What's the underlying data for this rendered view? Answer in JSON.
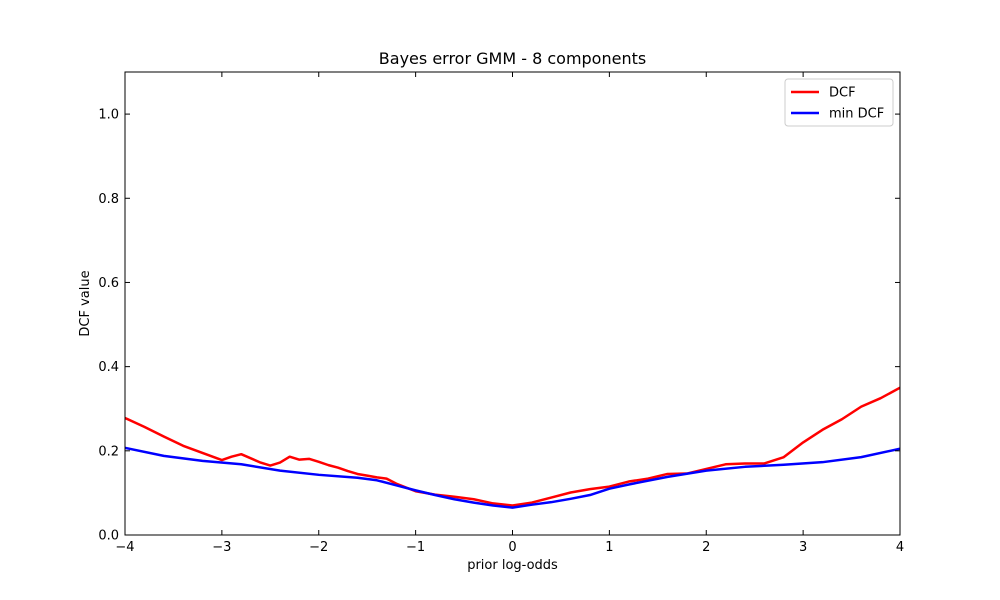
{
  "chart_data": {
    "type": "line",
    "title": "Bayes error GMM - 8 components",
    "xlabel": "prior log-odds",
    "ylabel": "DCF value",
    "xlim": [
      -4,
      4
    ],
    "ylim": [
      0,
      1.1
    ],
    "xticks": [
      -4,
      -3,
      -2,
      -1,
      0,
      1,
      2,
      3,
      4
    ],
    "yticks": [
      0.0,
      0.2,
      0.4,
      0.6,
      0.8,
      1.0
    ],
    "xtick_labels": [
      "−4",
      "−3",
      "−2",
      "−1",
      "0",
      "1",
      "2",
      "3",
      "4"
    ],
    "ytick_labels": [
      "0.0",
      "0.2",
      "0.4",
      "0.6",
      "0.8",
      "1.0"
    ],
    "grid": false,
    "legend_position": "top-right",
    "series": [
      {
        "name": "DCF",
        "color": "#ff0000",
        "x": [
          -4.0,
          -3.8,
          -3.6,
          -3.4,
          -3.2,
          -3.0,
          -2.9,
          -2.8,
          -2.6,
          -2.5,
          -2.4,
          -2.3,
          -2.2,
          -2.1,
          -2.0,
          -1.9,
          -1.8,
          -1.7,
          -1.6,
          -1.5,
          -1.4,
          -1.3,
          -1.2,
          -1.0,
          -0.8,
          -0.6,
          -0.4,
          -0.2,
          0.0,
          0.2,
          0.4,
          0.6,
          0.8,
          1.0,
          1.2,
          1.4,
          1.6,
          1.8,
          2.0,
          2.2,
          2.4,
          2.6,
          2.8,
          3.0,
          3.2,
          3.4,
          3.6,
          3.8,
          4.0
        ],
        "y": [
          0.278,
          0.257,
          0.234,
          0.212,
          0.195,
          0.178,
          0.186,
          0.192,
          0.172,
          0.165,
          0.172,
          0.186,
          0.179,
          0.181,
          0.174,
          0.166,
          0.16,
          0.152,
          0.145,
          0.141,
          0.137,
          0.134,
          0.122,
          0.104,
          0.096,
          0.091,
          0.085,
          0.075,
          0.07,
          0.077,
          0.089,
          0.101,
          0.109,
          0.115,
          0.127,
          0.134,
          0.145,
          0.146,
          0.157,
          0.168,
          0.17,
          0.17,
          0.185,
          0.22,
          0.25,
          0.275,
          0.305,
          0.325,
          0.35
        ]
      },
      {
        "name": "min DCF",
        "color": "#0000ff",
        "x": [
          -4.0,
          -3.6,
          -3.2,
          -2.8,
          -2.4,
          -2.0,
          -1.6,
          -1.4,
          -1.2,
          -1.0,
          -0.8,
          -0.6,
          -0.4,
          -0.2,
          0.0,
          0.2,
          0.4,
          0.6,
          0.8,
          1.0,
          1.2,
          1.6,
          2.0,
          2.4,
          2.8,
          3.2,
          3.6,
          4.0
        ],
        "y": [
          0.207,
          0.188,
          0.176,
          0.168,
          0.153,
          0.143,
          0.136,
          0.13,
          0.118,
          0.106,
          0.095,
          0.085,
          0.077,
          0.07,
          0.065,
          0.072,
          0.078,
          0.086,
          0.095,
          0.11,
          0.12,
          0.138,
          0.153,
          0.162,
          0.167,
          0.173,
          0.185,
          0.205
        ]
      }
    ]
  }
}
